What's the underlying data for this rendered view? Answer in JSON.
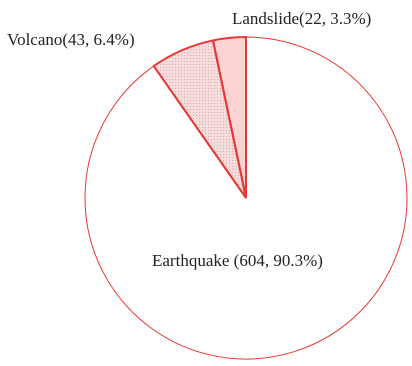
{
  "chart_data": {
    "type": "pie",
    "slices": [
      {
        "name": "Landslide",
        "value": 22,
        "percent": 3.3,
        "label": "Landslide(22, 3.3%)",
        "fill": "#fcd4d4",
        "pattern": "solid"
      },
      {
        "name": "Volcano",
        "value": 43,
        "percent": 6.4,
        "label": "Volcano(43, 6.4%)",
        "fill": "#f6dede",
        "pattern": "dotted"
      },
      {
        "name": "Earthquake",
        "value": 604,
        "percent": 90.3,
        "label": "Earthquake (604, 90.3%)",
        "fill": "#ffffff",
        "pattern": "solid"
      }
    ],
    "start_angle": "12 o'clock",
    "direction": "counterclockwise",
    "edge_color": "#e53935",
    "title": "",
    "legend": "none"
  }
}
